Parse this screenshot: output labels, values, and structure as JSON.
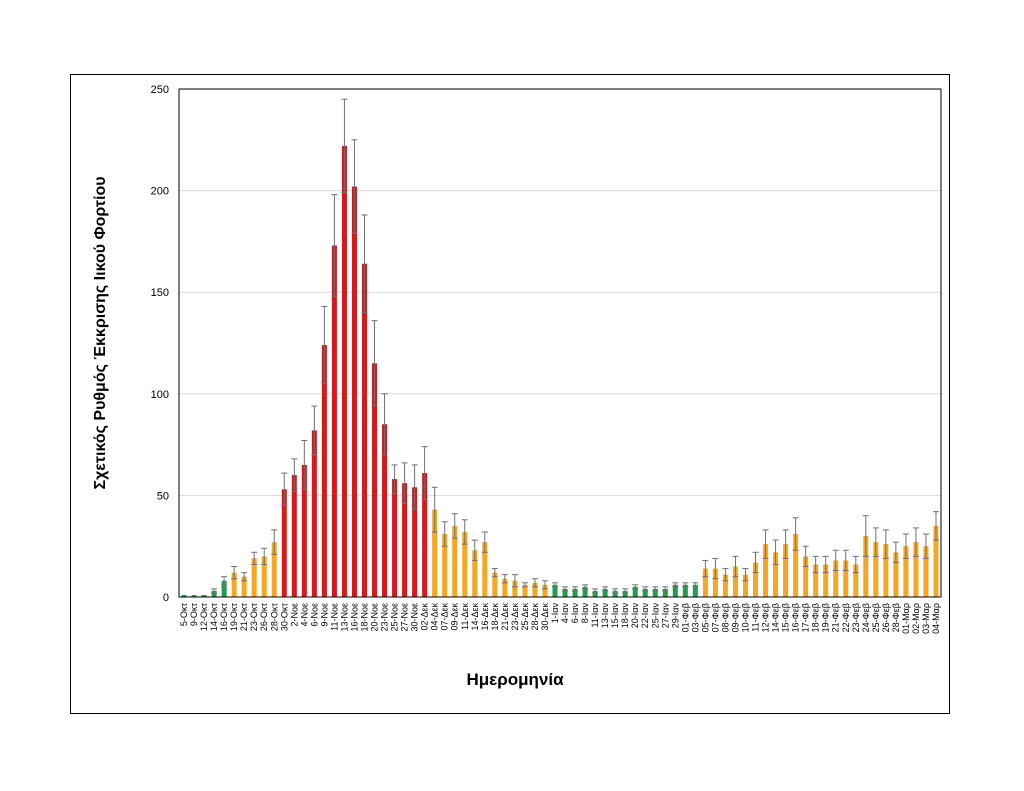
{
  "chart_data": {
    "type": "bar",
    "xlabel": "Ημερομηνία",
    "ylabel": "Σχετικός Ρυθμός Έκκρισης Ιικού Φορτίου",
    "ylim": [
      0,
      250
    ],
    "yticks": [
      0,
      50,
      100,
      150,
      200,
      250
    ],
    "grid": true,
    "error_bars": true,
    "colors": {
      "green": "#1f9e4d",
      "orange": "#f5a623",
      "red": "#d7191c",
      "error_bar": "#707070",
      "grid": "#d9d9d9"
    },
    "categories": [
      "5-Οκτ",
      "9-Οκτ",
      "12-Οκτ",
      "14-Οκτ",
      "16-Οκτ",
      "19-Οκτ",
      "21-Οκτ",
      "23-Οκτ",
      "26-Οκτ",
      "28-Οκτ",
      "30-Οκτ",
      "2-Νοε",
      "4-Νοε",
      "6-Νοε",
      "9-Νοε",
      "11-Νοε",
      "13-Νοε",
      "16-Νοε",
      "18-Νοε",
      "20-Νοε",
      "23-Νοε",
      "25-Νοε",
      "27-Νοε",
      "30-Νοε",
      "02-Δεκ",
      "04-Δεκ",
      "07-Δεκ",
      "09-Δεκ",
      "11-Δεκ",
      "14-Δεκ",
      "16-Δεκ",
      "18-Δεκ",
      "21-Δεκ",
      "23-Δεκ",
      "25-Δεκ",
      "28-Δεκ",
      "30-Δεκ",
      "1-Ιαν",
      "4-Ιαν",
      "6-Ιαν",
      "8-Ιαν",
      "11-Ιαν",
      "13-Ιαν",
      "15-Ιαν",
      "18-Ιαν",
      "20-Ιαν",
      "22-Ιαν",
      "25-Ιαν",
      "27-Ιαν",
      "29-Ιαν",
      "01-Φεβ",
      "03-Φεβ",
      "05-Φεβ",
      "07-Φεβ",
      "08-Φεβ",
      "09-Φεβ",
      "10-Φεβ",
      "11-Φεβ",
      "12-Φεβ",
      "14-Φεβ",
      "15-Φεβ",
      "16-Φεβ",
      "17-Φεβ",
      "18-Φεβ",
      "19-Φεβ",
      "21-Φεβ",
      "22-Φεβ",
      "23-Φεβ",
      "24-Φεβ",
      "25-Φεβ",
      "26-Φεβ",
      "28-Φεβ",
      "01-Μαρ",
      "02-Μαρ",
      "03-Μαρ",
      "04-Μαρ"
    ],
    "values": [
      1,
      1,
      1,
      3,
      8,
      12,
      10,
      19,
      20,
      27,
      53,
      60,
      65,
      82,
      124,
      173,
      222,
      202,
      164,
      115,
      85,
      58,
      56,
      54,
      61,
      43,
      31,
      35,
      32,
      23,
      27,
      12,
      9,
      8,
      6,
      7,
      6,
      6,
      4,
      4,
      5,
      3,
      4,
      3,
      3,
      5,
      4,
      4,
      4,
      6,
      6,
      6,
      14,
      14,
      11,
      15,
      11,
      17,
      26,
      22,
      26,
      31,
      20,
      16,
      16,
      18,
      18,
      16,
      30,
      27,
      26,
      22,
      25,
      27,
      25,
      35
    ],
    "errors": [
      0,
      0,
      0,
      1,
      2,
      3,
      2,
      3,
      4,
      6,
      8,
      8,
      12,
      12,
      19,
      25,
      23,
      23,
      24,
      21,
      15,
      7,
      10,
      11,
      13,
      11,
      6,
      6,
      6,
      5,
      5,
      2,
      2,
      3,
      1,
      2,
      2,
      1,
      1,
      1,
      1,
      1,
      1,
      1,
      1,
      1,
      1,
      1,
      1,
      1,
      1,
      1,
      4,
      5,
      3,
      5,
      3,
      5,
      7,
      6,
      7,
      8,
      5,
      4,
      4,
      5,
      5,
      4,
      10,
      7,
      7,
      5,
      6,
      7,
      6,
      7
    ],
    "bar_colors": [
      "green",
      "green",
      "green",
      "green",
      "green",
      "orange",
      "orange",
      "orange",
      "orange",
      "orange",
      "red",
      "red",
      "red",
      "red",
      "red",
      "red",
      "red",
      "red",
      "red",
      "red",
      "red",
      "red",
      "red",
      "red",
      "red",
      "orange",
      "orange",
      "orange",
      "orange",
      "orange",
      "orange",
      "orange",
      "orange",
      "orange",
      "orange",
      "orange",
      "orange",
      "green",
      "green",
      "green",
      "green",
      "green",
      "green",
      "green",
      "green",
      "green",
      "green",
      "green",
      "green",
      "green",
      "green",
      "green",
      "orange",
      "orange",
      "orange",
      "orange",
      "orange",
      "orange",
      "orange",
      "orange",
      "orange",
      "orange",
      "orange",
      "orange",
      "orange",
      "orange",
      "orange",
      "orange",
      "orange",
      "orange",
      "orange",
      "orange",
      "orange",
      "orange",
      "orange",
      "orange"
    ]
  }
}
